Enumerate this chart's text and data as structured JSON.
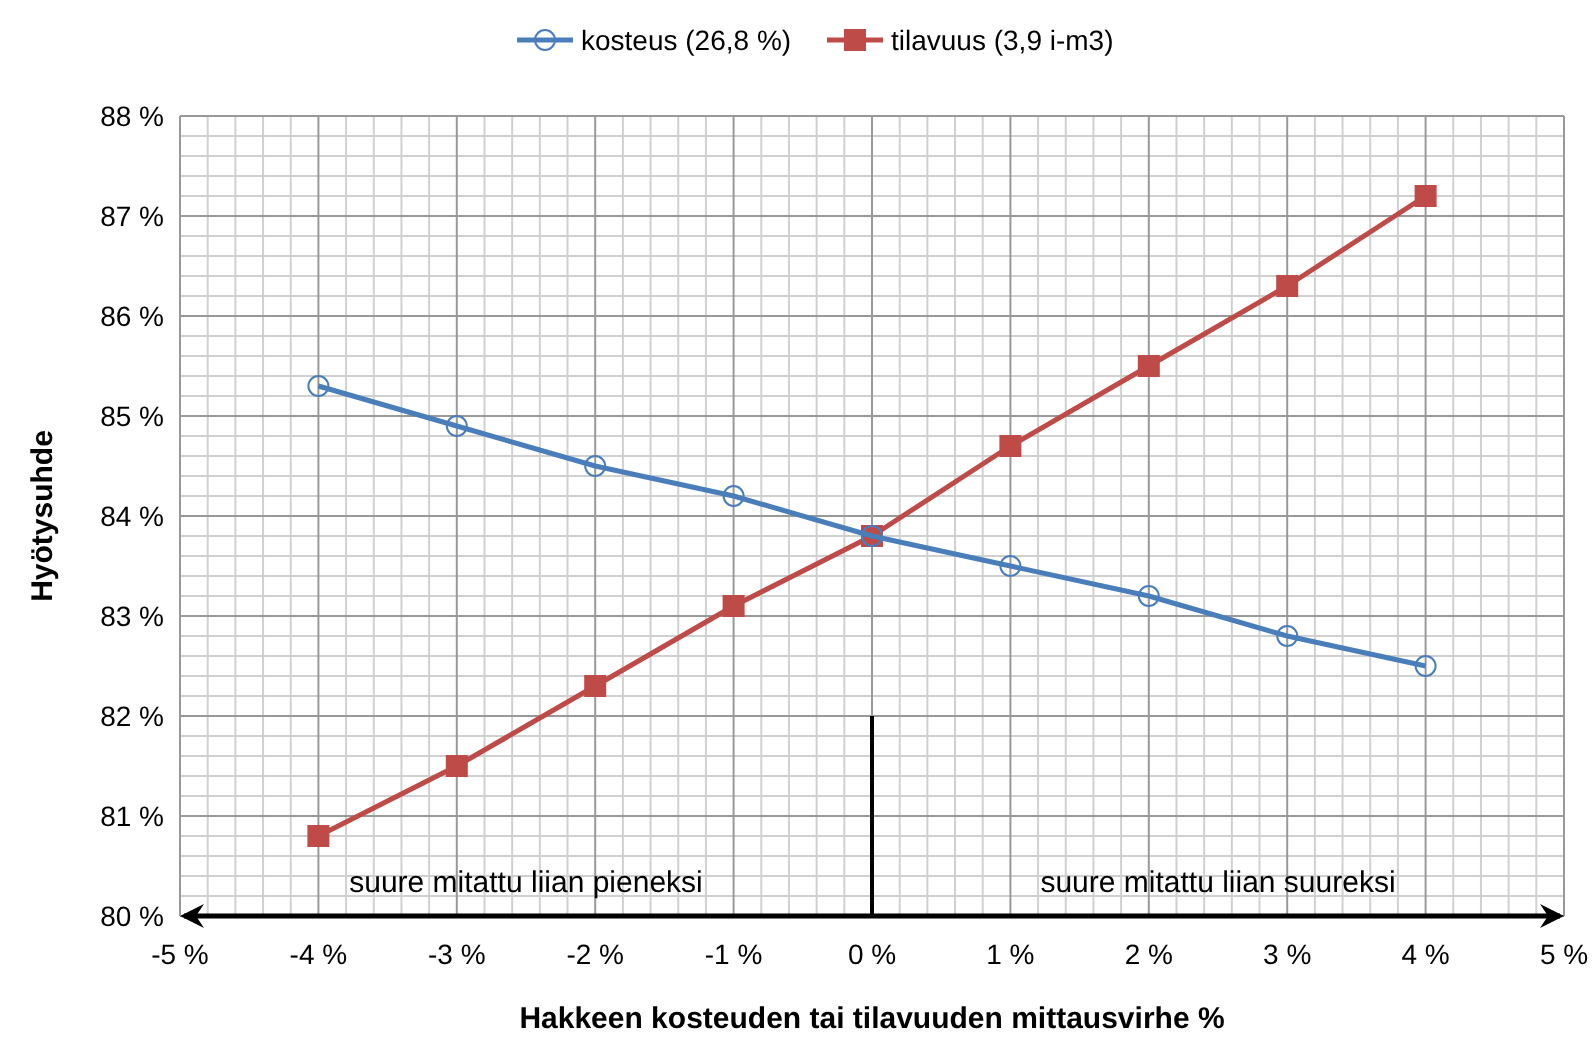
{
  "chart_data": {
    "type": "line",
    "xlabel": "Hakkeen kosteuden tai tilavuuden mittausvirhe %",
    "ylabel": "Hyötysuhde",
    "x": [
      -4,
      -3,
      -2,
      -1,
      0,
      1,
      2,
      3,
      4
    ],
    "series": [
      {
        "name": "kosteus (26,8 %)",
        "color": "#4a7ebb",
        "marker": "circle",
        "values": [
          85.3,
          84.9,
          84.5,
          84.2,
          83.8,
          83.5,
          83.2,
          82.8,
          82.5
        ]
      },
      {
        "name": "tilavuus (3,9 i-m3)",
        "color": "#be4b48",
        "marker": "square",
        "values": [
          80.8,
          81.5,
          82.3,
          83.1,
          83.8,
          84.7,
          85.5,
          86.3,
          87.2
        ]
      }
    ],
    "xlim": [
      -5,
      5
    ],
    "xticks": [
      {
        "value": -5,
        "label": "-5 %"
      },
      {
        "value": -4,
        "label": "-4 %"
      },
      {
        "value": -3,
        "label": "-3 %"
      },
      {
        "value": -2,
        "label": "-2 %"
      },
      {
        "value": -1,
        "label": "-1 %"
      },
      {
        "value": 0,
        "label": "0 %"
      },
      {
        "value": 1,
        "label": "1 %"
      },
      {
        "value": 2,
        "label": "2 %"
      },
      {
        "value": 3,
        "label": "3 %"
      },
      {
        "value": 4,
        "label": "4 %"
      },
      {
        "value": 5,
        "label": "5 %"
      }
    ],
    "ylim": [
      80,
      88
    ],
    "yticks": [
      {
        "value": 80,
        "label": "80 %"
      },
      {
        "value": 81,
        "label": "81 %"
      },
      {
        "value": 82,
        "label": "82 %"
      },
      {
        "value": 83,
        "label": "83 %"
      },
      {
        "value": 84,
        "label": "84 %"
      },
      {
        "value": 85,
        "label": "85 %"
      },
      {
        "value": 86,
        "label": "86 %"
      },
      {
        "value": 87,
        "label": "87 %"
      },
      {
        "value": 88,
        "label": "88 %"
      }
    ],
    "grid": true,
    "legend": "top",
    "ref_lines": [
      {
        "axis": "x",
        "value": 0,
        "color": "#000000"
      }
    ],
    "annotations": [
      "suure mitattu liian pieneksi",
      "suure mitattu liian suureksi"
    ]
  }
}
